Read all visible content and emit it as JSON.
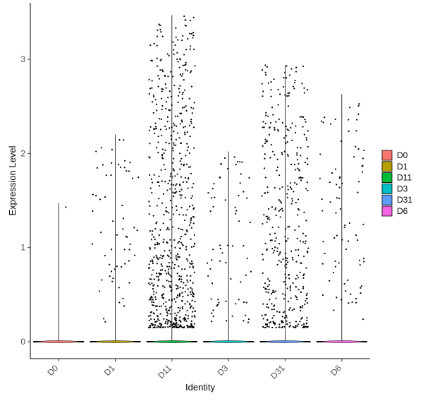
{
  "chart_data": {
    "type": "violin",
    "xlabel": "Identity",
    "ylabel": "Expression Level",
    "categories": [
      "D0",
      "D1",
      "D11",
      "D3",
      "D31",
      "D6"
    ],
    "ylim": [
      -0.18,
      3.6
    ],
    "yticks": [
      0,
      1,
      2,
      3
    ],
    "colors": {
      "D0": "#F8766D",
      "D1": "#B79F00",
      "D11": "#00BA38",
      "D3": "#00BFC4",
      "D31": "#619CFF",
      "D6": "#F564E3"
    },
    "max_values": {
      "D0": 1.47,
      "D1": 2.2,
      "D11": 3.47,
      "D3": 2.02,
      "D31": 2.94,
      "D6": 2.63
    },
    "nonzero_points_approx": {
      "D0": 1,
      "D1": 60,
      "D11": 700,
      "D3": 70,
      "D31": 400,
      "D6": 80
    },
    "points_at_zero": true,
    "legend": {
      "position": "right",
      "entries": [
        "D0",
        "D1",
        "D11",
        "D3",
        "D31",
        "D6"
      ]
    },
    "grid": false
  }
}
